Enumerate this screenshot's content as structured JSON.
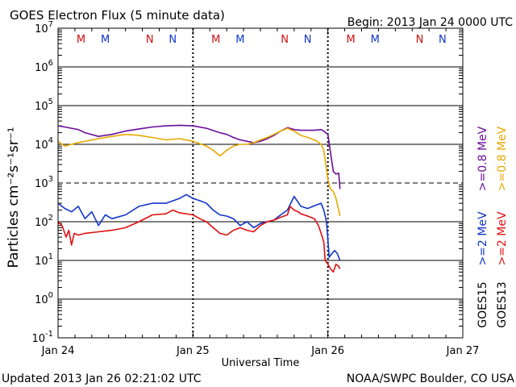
{
  "header": {
    "title": "GOES Electron Flux (5 minute data)",
    "begin": "Begin: 2013 Jan 24 0000 UTC"
  },
  "footer": {
    "updated": "Updated 2013 Jan 26 02:21:02 UTC",
    "credit": "NOAA/SWPC Boulder, CO USA"
  },
  "colors": {
    "goes15_low": "#6a0d9a",
    "goes13_low": "#e8a800",
    "goes15_high": "#1035c8",
    "goes13_high": "#e01010",
    "event_red": "#d01010",
    "event_blue": "#1035c8"
  },
  "right_labels": {
    "goes15_low": ">=0.8 MeV",
    "goes13_low": ">=0.8 MeV",
    "goes15_high": ">=2 MeV",
    "goes13_high": ">=2 MeV",
    "goes15": "GOES15",
    "goes13": "GOES13"
  },
  "chart_data": {
    "type": "line",
    "title": "GOES Electron Flux (5 minute data)",
    "xlabel": "Universal Time",
    "ylabel": "Particles cm⁻²s⁻¹sr⁻¹",
    "yscale": "log",
    "ylim": [
      0.1,
      10000000
    ],
    "xlim": [
      0,
      3
    ],
    "x_unit": "days since 2013 Jan 24 0000 UTC",
    "x_ticks": [
      {
        "x": 0,
        "label": "Jan 24"
      },
      {
        "x": 1,
        "label": "Jan 25"
      },
      {
        "x": 2,
        "label": "Jan 26"
      },
      {
        "x": 3,
        "label": "Jan 27"
      }
    ],
    "y_ticks": [
      {
        "y": 10000000,
        "base": "10",
        "exp": "7"
      },
      {
        "y": 1000000,
        "base": "10",
        "exp": "6"
      },
      {
        "y": 100000,
        "base": "10",
        "exp": "5"
      },
      {
        "y": 10000,
        "base": "10",
        "exp": "4"
      },
      {
        "y": 1000,
        "base": "10",
        "exp": "3"
      },
      {
        "y": 100,
        "base": "10",
        "exp": "2"
      },
      {
        "y": 10,
        "base": "10",
        "exp": "1"
      },
      {
        "y": 1,
        "base": "10",
        "exp": "0"
      },
      {
        "y": 0.1,
        "base": "10",
        "exp": "-1"
      }
    ],
    "dashed_threshold": 1000,
    "events": [
      {
        "x": 0.17,
        "label": "M",
        "color": "event_red"
      },
      {
        "x": 0.35,
        "label": "M",
        "color": "event_blue"
      },
      {
        "x": 0.68,
        "label": "N",
        "color": "event_red"
      },
      {
        "x": 0.85,
        "label": "N",
        "color": "event_blue"
      },
      {
        "x": 1.17,
        "label": "M",
        "color": "event_red"
      },
      {
        "x": 1.35,
        "label": "M",
        "color": "event_blue"
      },
      {
        "x": 1.68,
        "label": "N",
        "color": "event_red"
      },
      {
        "x": 1.85,
        "label": "N",
        "color": "event_blue"
      },
      {
        "x": 2.17,
        "label": "M",
        "color": "event_red"
      },
      {
        "x": 2.35,
        "label": "M",
        "color": "event_blue"
      },
      {
        "x": 2.68,
        "label": "N",
        "color": "event_red"
      },
      {
        "x": 2.85,
        "label": "N",
        "color": "event_blue"
      }
    ],
    "series": [
      {
        "name": "GOES15 >=0.8 MeV",
        "color": "goes15_low",
        "x": [
          0,
          0.05,
          0.1,
          0.15,
          0.2,
          0.3,
          0.4,
          0.5,
          0.6,
          0.7,
          0.8,
          0.9,
          1.0,
          1.1,
          1.2,
          1.25,
          1.3,
          1.35,
          1.4,
          1.45,
          1.5,
          1.55,
          1.6,
          1.65,
          1.7,
          1.75,
          1.8,
          1.85,
          1.9,
          1.95,
          1.97,
          2.0,
          2.02,
          2.04,
          2.06,
          2.08,
          2.09
        ],
        "y": [
          30000,
          28000,
          26000,
          24000,
          20000,
          16000,
          18000,
          22000,
          25000,
          28000,
          30000,
          31000,
          30000,
          26000,
          20000,
          18000,
          15000,
          13000,
          12000,
          11000,
          12000,
          14000,
          17000,
          22000,
          27000,
          24000,
          23000,
          23000,
          23000,
          24000,
          22000,
          18000,
          6000,
          2000,
          1700,
          1800,
          700
        ]
      },
      {
        "name": "GOES13 >=0.8 MeV",
        "color": "goes13_low",
        "x": [
          0,
          0.03,
          0.05,
          0.1,
          0.15,
          0.2,
          0.3,
          0.4,
          0.5,
          0.6,
          0.7,
          0.8,
          0.9,
          1.0,
          1.1,
          1.15,
          1.2,
          1.25,
          1.3,
          1.35,
          1.4,
          1.45,
          1.5,
          1.55,
          1.6,
          1.65,
          1.7,
          1.75,
          1.8,
          1.85,
          1.9,
          1.92,
          1.95,
          1.97,
          2.0,
          2.02,
          2.04,
          2.06,
          2.08,
          2.09
        ],
        "y": [
          12000,
          10000,
          9000,
          10000,
          11000,
          12000,
          14000,
          16000,
          18000,
          17000,
          15000,
          13000,
          14000,
          12000,
          9000,
          7000,
          5000,
          7000,
          9000,
          10000,
          10000,
          11000,
          13000,
          15000,
          18000,
          22000,
          26000,
          22000,
          17000,
          15000,
          13000,
          12000,
          10000,
          7000,
          1200,
          700,
          600,
          400,
          200,
          140
        ]
      },
      {
        "name": "GOES15 >=2 MeV",
        "color": "goes15_high",
        "x": [
          0,
          0.05,
          0.1,
          0.15,
          0.2,
          0.25,
          0.3,
          0.35,
          0.4,
          0.5,
          0.6,
          0.7,
          0.8,
          0.9,
          0.95,
          1.0,
          1.05,
          1.1,
          1.15,
          1.2,
          1.25,
          1.3,
          1.35,
          1.4,
          1.45,
          1.5,
          1.55,
          1.6,
          1.65,
          1.7,
          1.75,
          1.8,
          1.85,
          1.9,
          1.95,
          1.97,
          1.99,
          2.01,
          2.03,
          2.05,
          2.07,
          2.09
        ],
        "y": [
          300,
          220,
          180,
          250,
          120,
          180,
          80,
          150,
          120,
          150,
          250,
          300,
          300,
          400,
          500,
          400,
          350,
          300,
          200,
          150,
          140,
          120,
          80,
          100,
          70,
          90,
          100,
          110,
          150,
          200,
          450,
          250,
          220,
          260,
          300,
          200,
          100,
          12,
          15,
          18,
          15,
          10
        ]
      },
      {
        "name": "GOES13 >=2 MeV",
        "color": "goes13_high",
        "x": [
          0,
          0.03,
          0.06,
          0.08,
          0.1,
          0.12,
          0.15,
          0.2,
          0.3,
          0.4,
          0.5,
          0.6,
          0.7,
          0.8,
          0.85,
          0.9,
          1.0,
          1.05,
          1.1,
          1.15,
          1.2,
          1.25,
          1.3,
          1.35,
          1.4,
          1.45,
          1.5,
          1.55,
          1.6,
          1.65,
          1.7,
          1.72,
          1.75,
          1.78,
          1.8,
          1.85,
          1.9,
          1.93,
          1.95,
          1.97,
          1.98,
          2.0,
          2.02,
          2.04,
          2.06,
          2.08,
          2.09
        ],
        "y": [
          100,
          80,
          40,
          60,
          25,
          50,
          45,
          50,
          55,
          60,
          70,
          100,
          150,
          160,
          200,
          170,
          150,
          120,
          100,
          70,
          50,
          45,
          60,
          70,
          60,
          55,
          80,
          100,
          110,
          130,
          150,
          250,
          200,
          180,
          160,
          140,
          120,
          80,
          50,
          30,
          10,
          8,
          6,
          5,
          8,
          7,
          6
        ]
      }
    ]
  }
}
